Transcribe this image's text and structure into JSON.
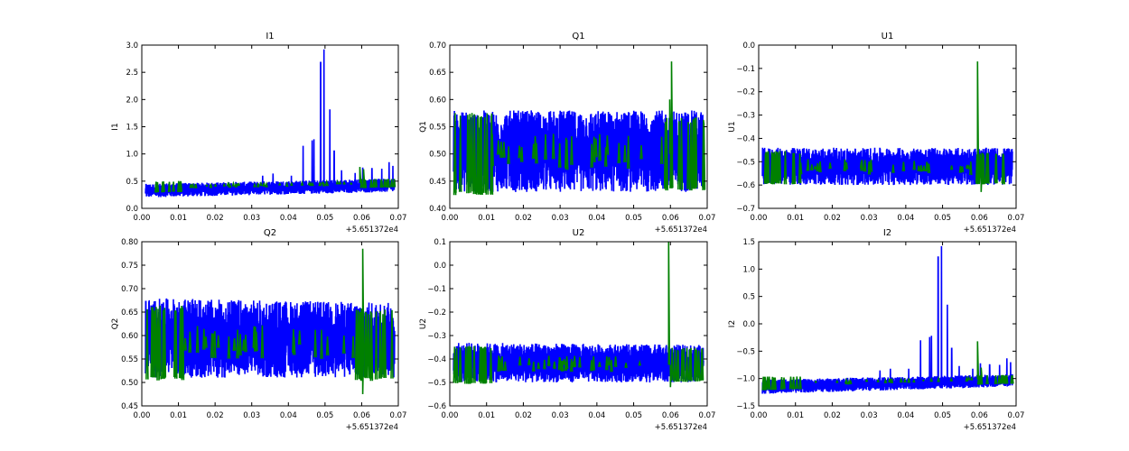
{
  "chart_data": [
    {
      "type": "line",
      "title": "I1",
      "ylabel": "I1",
      "xlim": [
        0,
        0.07
      ],
      "ylim": [
        0,
        3.0
      ],
      "xticks": [
        "0.00",
        "0.01",
        "0.02",
        "0.03",
        "0.04",
        "0.05",
        "0.06",
        "0.07"
      ],
      "yticks": [
        "0.0",
        "0.5",
        "1.0",
        "1.5",
        "2.0",
        "2.5",
        "3.0"
      ],
      "x_offset_text": "+5.651372e4",
      "series": [
        {
          "name": "blue",
          "color": "#0000ff",
          "x_range": [
            0.001,
            0.069
          ],
          "band_start": [
            0.2,
            0.45
          ],
          "band_end": [
            0.3,
            0.55
          ],
          "spikes": [
            [
              0.033,
              0.6
            ],
            [
              0.0358,
              0.64
            ],
            [
              0.0408,
              0.6
            ],
            [
              0.044,
              1.15
            ],
            [
              0.0465,
              1.25
            ],
            [
              0.047,
              1.27
            ],
            [
              0.0488,
              2.68
            ],
            [
              0.0497,
              2.92
            ],
            [
              0.0513,
              1.82
            ],
            [
              0.0525,
              1.05
            ],
            [
              0.0545,
              0.7
            ],
            [
              0.0582,
              0.65
            ],
            [
              0.0603,
              0.75
            ],
            [
              0.0628,
              0.73
            ],
            [
              0.0655,
              0.73
            ],
            [
              0.0675,
              0.85
            ],
            [
              0.0685,
              0.78
            ]
          ]
        },
        {
          "name": "green",
          "color": "#008000",
          "x_range": [
            0.001,
            0.069
          ],
          "band_start": [
            0.28,
            0.5
          ],
          "band_end": [
            0.38,
            0.55
          ],
          "spikes": [
            [
              0.0595,
              0.76
            ],
            [
              0.0605,
              0.72
            ]
          ]
        }
      ]
    },
    {
      "type": "line",
      "title": "Q1",
      "ylabel": "Q1",
      "xlim": [
        0,
        0.07
      ],
      "ylim": [
        0.4,
        0.7
      ],
      "xticks": [
        "0.00",
        "0.01",
        "0.02",
        "0.03",
        "0.04",
        "0.05",
        "0.06",
        "0.07"
      ],
      "yticks": [
        "0.40",
        "0.45",
        "0.50",
        "0.55",
        "0.60",
        "0.65",
        "0.70"
      ],
      "x_offset_text": "+5.651372e4",
      "series": [
        {
          "name": "blue",
          "color": "#0000ff",
          "x_range": [
            0.001,
            0.069
          ],
          "band_start": [
            0.43,
            0.58
          ],
          "band_end": [
            0.43,
            0.58
          ],
          "spikes": []
        },
        {
          "name": "green",
          "color": "#008000",
          "x_range": [
            0.001,
            0.069
          ],
          "band_start": [
            0.42,
            0.58
          ],
          "band_end": [
            0.43,
            0.57
          ],
          "spikes": [
            [
              0.0598,
              0.6
            ],
            [
              0.0603,
              0.67
            ]
          ]
        }
      ]
    },
    {
      "type": "line",
      "title": "U1",
      "ylabel": "U1",
      "xlim": [
        0,
        0.07
      ],
      "ylim": [
        -0.7,
        0.0
      ],
      "xticks": [
        "0.00",
        "0.01",
        "0.02",
        "0.03",
        "0.04",
        "0.05",
        "0.06",
        "0.07"
      ],
      "yticks": [
        "−0.7",
        "−0.6",
        "−0.5",
        "−0.4",
        "−0.3",
        "−0.2",
        "−0.1",
        "0.0"
      ],
      "x_offset_text": "+5.651372e4",
      "series": [
        {
          "name": "blue",
          "color": "#0000ff",
          "x_range": [
            0.001,
            0.069
          ],
          "band_start": [
            -0.6,
            -0.44
          ],
          "band_end": [
            -0.6,
            -0.44
          ],
          "spikes": []
        },
        {
          "name": "green",
          "color": "#008000",
          "x_range": [
            0.001,
            0.069
          ],
          "band_start": [
            -0.6,
            -0.45
          ],
          "band_end": [
            -0.6,
            -0.46
          ],
          "spikes": [
            [
              0.0595,
              -0.07
            ],
            [
              0.0605,
              -0.63
            ]
          ]
        }
      ]
    },
    {
      "type": "line",
      "title": "Q2",
      "ylabel": "Q2",
      "xlim": [
        0,
        0.07
      ],
      "ylim": [
        0.45,
        0.8
      ],
      "xticks": [
        "0.00",
        "0.01",
        "0.02",
        "0.03",
        "0.04",
        "0.05",
        "0.06",
        "0.07"
      ],
      "yticks": [
        "0.45",
        "0.50",
        "0.55",
        "0.60",
        "0.65",
        "0.70",
        "0.75",
        "0.80"
      ],
      "x_offset_text": "+5.651372e4",
      "series": [
        {
          "name": "blue",
          "color": "#0000ff",
          "x_range": [
            0.001,
            0.069
          ],
          "band_start": [
            0.51,
            0.68
          ],
          "band_end": [
            0.51,
            0.67
          ],
          "spikes": []
        },
        {
          "name": "green",
          "color": "#008000",
          "x_range": [
            0.001,
            0.069
          ],
          "band_start": [
            0.5,
            0.67
          ],
          "band_end": [
            0.5,
            0.66
          ],
          "spikes": [
            [
              0.0603,
              0.785
            ],
            [
              0.0603,
              0.475
            ]
          ]
        }
      ]
    },
    {
      "type": "line",
      "title": "U2",
      "ylabel": "U2",
      "xlim": [
        0,
        0.07
      ],
      "ylim": [
        -0.6,
        0.1
      ],
      "xticks": [
        "0.00",
        "0.01",
        "0.02",
        "0.03",
        "0.04",
        "0.05",
        "0.06",
        "0.07"
      ],
      "yticks": [
        "−0.6",
        "−0.5",
        "−0.4",
        "−0.3",
        "−0.2",
        "−0.1",
        "0.0",
        "0.1"
      ],
      "x_offset_text": "+5.651372e4",
      "series": [
        {
          "name": "blue",
          "color": "#0000ff",
          "x_range": [
            0.001,
            0.069
          ],
          "band_start": [
            -0.5,
            -0.33
          ],
          "band_end": [
            -0.5,
            -0.34
          ],
          "spikes": []
        },
        {
          "name": "green",
          "color": "#008000",
          "x_range": [
            0.001,
            0.069
          ],
          "band_start": [
            -0.51,
            -0.34
          ],
          "band_end": [
            -0.5,
            -0.35
          ],
          "spikes": [
            [
              0.0595,
              0.1
            ],
            [
              0.06,
              -0.52
            ]
          ]
        }
      ]
    },
    {
      "type": "line",
      "title": "I2",
      "ylabel": "I2",
      "xlim": [
        0,
        0.07
      ],
      "ylim": [
        -1.5,
        1.5
      ],
      "xticks": [
        "0.00",
        "0.01",
        "0.02",
        "0.03",
        "0.04",
        "0.05",
        "0.06",
        "0.07"
      ],
      "yticks": [
        "−1.5",
        "−1.0",
        "−0.5",
        "0.0",
        "0.5",
        "1.0",
        "1.5"
      ],
      "x_offset_text": "+5.651372e4",
      "series": [
        {
          "name": "blue",
          "color": "#0000ff",
          "x_range": [
            0.001,
            0.069
          ],
          "band_start": [
            -1.28,
            -1.02
          ],
          "band_end": [
            -1.15,
            -0.92
          ],
          "spikes": [
            [
              0.033,
              -0.85
            ],
            [
              0.0358,
              -0.82
            ],
            [
              0.0408,
              -0.82
            ],
            [
              0.044,
              -0.3
            ],
            [
              0.0465,
              -0.24
            ],
            [
              0.047,
              -0.22
            ],
            [
              0.0488,
              1.22
            ],
            [
              0.0497,
              1.42
            ],
            [
              0.0513,
              0.35
            ],
            [
              0.0525,
              -0.45
            ],
            [
              0.0545,
              -0.77
            ],
            [
              0.0582,
              -0.82
            ],
            [
              0.0603,
              -0.72
            ],
            [
              0.0628,
              -0.75
            ],
            [
              0.0655,
              -0.75
            ],
            [
              0.0675,
              -0.63
            ],
            [
              0.0685,
              -0.7
            ]
          ]
        },
        {
          "name": "green",
          "color": "#008000",
          "x_range": [
            0.001,
            0.069
          ],
          "band_start": [
            -1.22,
            -0.96
          ],
          "band_end": [
            -1.1,
            -0.93
          ],
          "spikes": [
            [
              0.0595,
              -0.32
            ],
            [
              0.0605,
              -0.8
            ]
          ]
        }
      ]
    }
  ]
}
